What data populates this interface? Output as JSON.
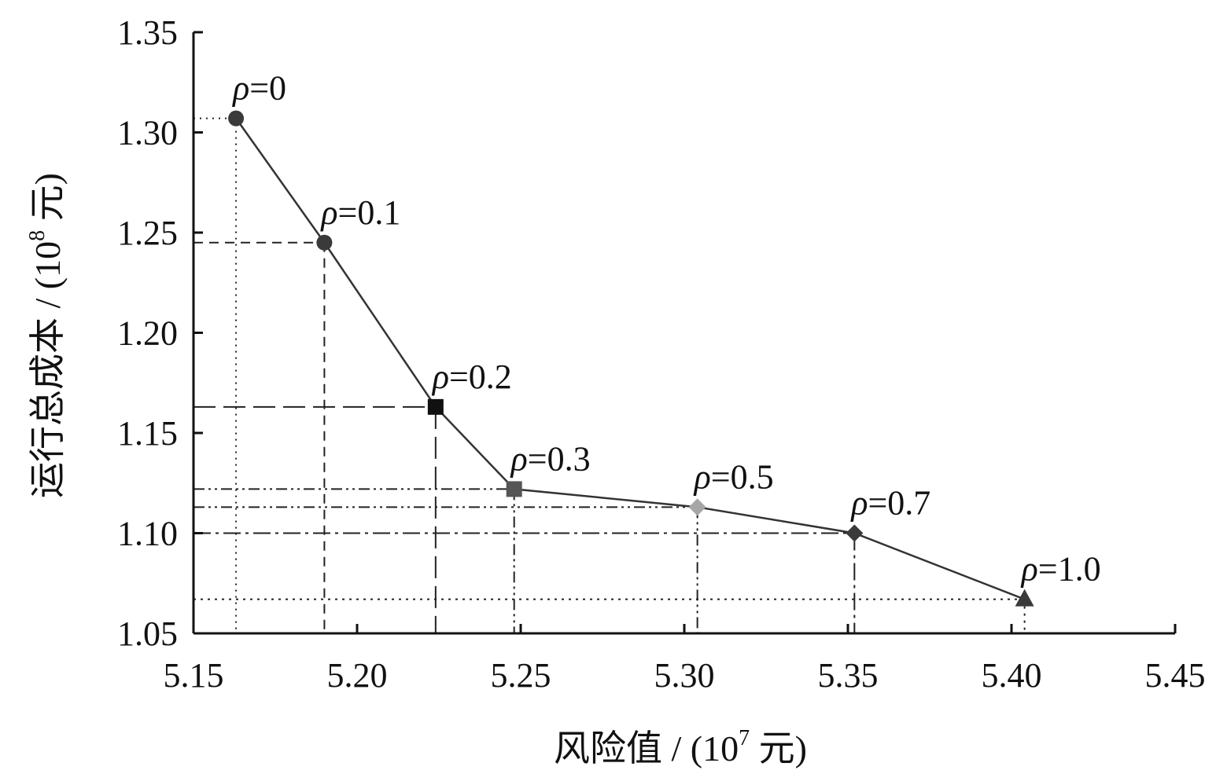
{
  "chart_data": {
    "type": "scatter",
    "xlabel": "风险值 / (10",
    "xlabel_exp": "7",
    "xlabel_unit": " 元)",
    "ylabel": "运行总成本 / (10",
    "ylabel_exp": "8",
    "ylabel_unit": " 元)",
    "xlim": [
      5.15,
      5.45
    ],
    "ylim": [
      1.05,
      1.35
    ],
    "x_ticks": [
      "5.15",
      "5.20",
      "5.25",
      "5.30",
      "5.35",
      "5.40",
      "5.45"
    ],
    "y_ticks": [
      "1.05",
      "1.10",
      "1.15",
      "1.20",
      "1.25",
      "1.30",
      "1.35"
    ],
    "grid": false,
    "series": [
      {
        "points": [
          {
            "label_sym": "ρ",
            "label_val": "=0",
            "x": 5.163,
            "y": 1.307,
            "marker": "circle",
            "color": "#3a3a3a"
          },
          {
            "label_sym": "ρ",
            "label_val": "=0.1",
            "x": 5.19,
            "y": 1.245,
            "marker": "circle",
            "color": "#3a3a3a"
          },
          {
            "label_sym": "ρ",
            "label_val": "=0.2",
            "x": 5.224,
            "y": 1.163,
            "marker": "square",
            "color": "#111111"
          },
          {
            "label_sym": "ρ",
            "label_val": "=0.3",
            "x": 5.248,
            "y": 1.122,
            "marker": "square",
            "color": "#555555"
          },
          {
            "label_sym": "ρ",
            "label_val": "=0.5",
            "x": 5.304,
            "y": 1.113,
            "marker": "diamond",
            "color": "#a6a6a6"
          },
          {
            "label_sym": "ρ",
            "label_val": "=0.7",
            "x": 5.352,
            "y": 1.1,
            "marker": "diamond",
            "color": "#3a3a3a"
          },
          {
            "label_sym": "ρ",
            "label_val": "=1.0",
            "x": 5.404,
            "y": 1.067,
            "marker": "triangle",
            "color": "#3a3a3a"
          }
        ]
      }
    ],
    "line_color": "#333333"
  }
}
